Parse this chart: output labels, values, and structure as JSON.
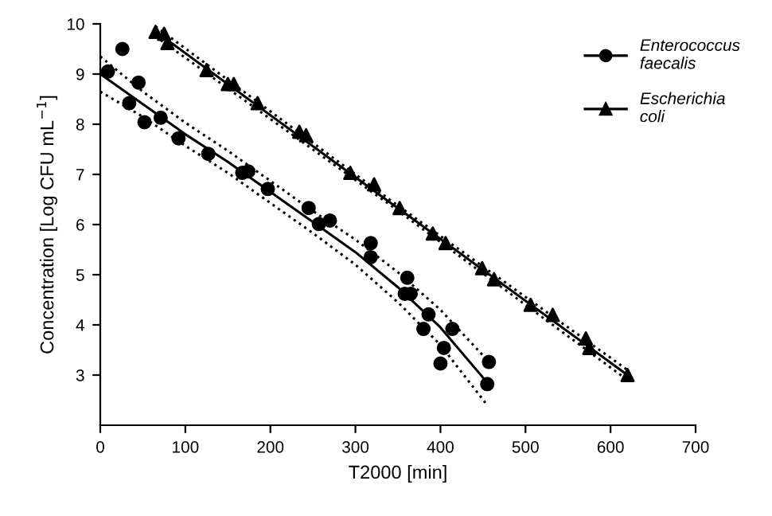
{
  "chart_data": {
    "type": "scatter",
    "xlabel": "T2000 [min]",
    "ylabel": "Concentration [Log CFU mL$^{−1}$]",
    "xlim": [
      0,
      700
    ],
    "xticks": [
      0,
      100,
      200,
      300,
      400,
      500,
      600,
      700
    ],
    "ylim": [
      2,
      10
    ],
    "yticks": [
      3,
      4,
      5,
      6,
      7,
      8,
      9,
      10
    ],
    "grid": false,
    "legend": "top right",
    "series": [
      {
        "name": "Enterococcus faecalis",
        "marker": "circle",
        "color": "#000000",
        "x": [
          9,
          26,
          45,
          34,
          52,
          71,
          92,
          127,
          167,
          174,
          197,
          245,
          257,
          270,
          318,
          318,
          361,
          358,
          365,
          386,
          380,
          414,
          404,
          400,
          457,
          455
        ],
        "values": [
          9.05,
          9.5,
          8.83,
          8.42,
          8.04,
          8.13,
          7.72,
          7.41,
          7.03,
          7.06,
          6.71,
          6.33,
          6.01,
          6.08,
          5.63,
          5.35,
          4.94,
          4.62,
          4.62,
          4.21,
          3.92,
          3.92,
          3.54,
          3.23,
          3.26,
          2.82
        ]
      },
      {
        "name": "Escherichia coli",
        "marker": "triangle",
        "color": "#000000",
        "x": [
          65,
          75,
          79,
          125,
          150,
          157,
          185,
          234,
          242,
          294,
          322,
          352,
          391,
          406,
          449,
          463,
          506,
          532,
          571,
          575,
          620
        ],
        "values": [
          9.84,
          9.8,
          9.62,
          9.08,
          8.8,
          8.8,
          8.42,
          7.85,
          7.78,
          7.03,
          6.8,
          6.33,
          5.82,
          5.63,
          5.13,
          4.91,
          4.4,
          4.2,
          3.73,
          3.54,
          3.0
        ]
      },
      {
        "type": "line",
        "color": "#000000",
        "line_style": "solid",
        "x": [
          0,
          50,
          100,
          150,
          200,
          250,
          300,
          350,
          400,
          455
        ],
        "values": [
          9.0,
          8.4,
          7.8,
          7.25,
          6.65,
          6.05,
          5.45,
          4.75,
          3.95,
          2.85
        ]
      },
      {
        "type": "line",
        "color": "#000000",
        "line_style": "dotted",
        "x": [
          0,
          50,
          100,
          150,
          200,
          250,
          300,
          350,
          400,
          455
        ],
        "values": [
          8.65,
          8.15,
          7.57,
          7.03,
          6.43,
          5.83,
          5.2,
          4.45,
          3.6,
          2.4
        ]
      },
      {
        "type": "line",
        "color": "#000000",
        "line_style": "dotted",
        "x": [
          0,
          50,
          100,
          150,
          200,
          250,
          300,
          350,
          400,
          455
        ],
        "values": [
          9.35,
          8.65,
          8.03,
          7.47,
          6.87,
          6.27,
          5.7,
          5.05,
          4.3,
          3.3
        ]
      },
      {
        "type": "line",
        "color": "#000000",
        "line_style": "solid",
        "x": [
          65,
          340,
          620
        ],
        "values": [
          9.85,
          6.45,
          3.0
        ]
      },
      {
        "type": "line",
        "color": "#000000",
        "line_style": "dotted",
        "x": [
          65,
          340,
          620
        ],
        "values": [
          9.75,
          6.4,
          2.9
        ]
      },
      {
        "type": "line",
        "color": "#000000",
        "line_style": "dotted",
        "x": [
          65,
          340,
          620
        ],
        "values": [
          9.95,
          6.5,
          3.1
        ]
      }
    ]
  }
}
